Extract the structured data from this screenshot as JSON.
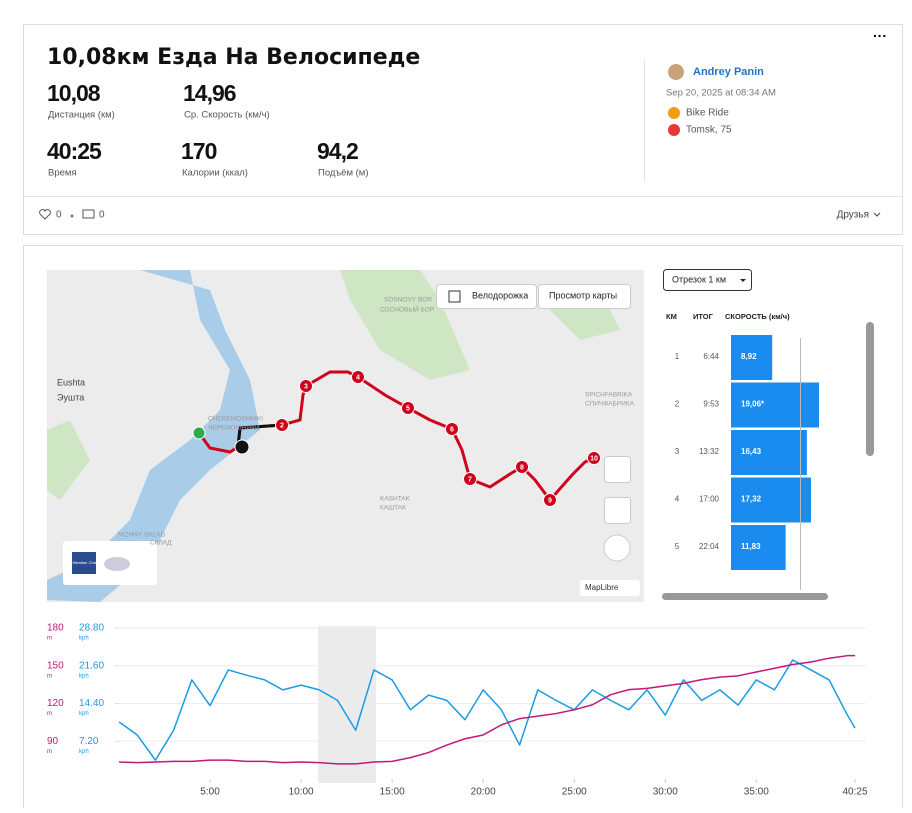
{
  "header": {
    "title": "10,08км Езда На Велосипеде",
    "menu": "···",
    "stats": [
      {
        "value": "10,08",
        "label": "Дистанция (км)"
      },
      {
        "value": "14,96",
        "label": "Ср. Скорость (км/ч)"
      },
      {
        "value": "40:25",
        "label": "Время"
      },
      {
        "value": "170",
        "label": "Калории (ккал)"
      },
      {
        "value": "94,2",
        "label": "Подъём (м)"
      }
    ]
  },
  "athlete": {
    "name": "Andrey Panin",
    "date": "Sep 20, 2025 at 08:34 AM",
    "activity": "Bike Ride",
    "location": "Tomsk, 75"
  },
  "social": {
    "likes": "0",
    "comments": "0",
    "visibility": "Друзья"
  },
  "map": {
    "toggle": "Велодорожка",
    "view": "Просмотр карты",
    "attribution": "MapLibre",
    "weather": "The Weather Channel",
    "places": [
      "Eushta",
      "Эушта",
      "SOSNOVY BOR",
      "СОСНОВЫЙ БОР",
      "CHEREMOSHNIKI",
      "ЧЕРЕМОШНИКИ",
      "KASHTAK",
      "КАШТАК",
      "SPICHFABRIKA",
      "СПИЧФАБРИКА",
      "NIZHNY SKLAD",
      "СКЛАД"
    ],
    "markers": [
      "2",
      "3",
      "4",
      "5",
      "6",
      "7",
      "8",
      "9",
      "10"
    ]
  },
  "splits": {
    "selector": "Отрезок 1 км",
    "headers": [
      "КМ",
      "ИТОГ",
      "СКОРОСТЬ (км/ч)"
    ],
    "rows": [
      {
        "km": "1",
        "total": "6:44",
        "speed": 8.92,
        "speed_label": "8,92"
      },
      {
        "km": "2",
        "total": "9:53",
        "speed": 19.06,
        "speed_label": "19,06*"
      },
      {
        "km": "3",
        "total": "13:32",
        "speed": 16.43,
        "speed_label": "16,43"
      },
      {
        "km": "4",
        "total": "17:00",
        "speed": 17.32,
        "speed_label": "17,32"
      },
      {
        "km": "5",
        "total": "22:04",
        "speed": 11.83,
        "speed_label": "11,83"
      }
    ]
  },
  "chart_data": {
    "type": "line",
    "y_unit": "m",
    "y2_unit": "kph",
    "x": [
      0,
      1,
      2,
      3,
      4,
      5,
      6,
      7,
      8,
      9,
      10,
      11,
      12,
      13,
      14,
      15,
      16,
      17,
      18,
      19,
      20,
      21,
      22,
      23,
      24,
      25,
      26,
      27,
      28,
      29,
      30,
      31,
      32,
      33,
      34,
      35,
      36,
      37,
      38,
      39,
      40,
      40.42
    ],
    "xlim": [
      0,
      40.42
    ],
    "xticks": [
      {
        "value": 5,
        "label": "5:00"
      },
      {
        "value": 10,
        "label": "10:00"
      },
      {
        "value": 15,
        "label": "15:00"
      },
      {
        "value": 20,
        "label": "20:00"
      },
      {
        "value": 25,
        "label": "25:00"
      },
      {
        "value": 30,
        "label": "30:00"
      },
      {
        "value": 35,
        "label": "35:00"
      },
      {
        "value": 40.42,
        "label": "40:25"
      }
    ],
    "ylim": [
      60,
      180
    ],
    "yticks": [
      90,
      120,
      150,
      180
    ],
    "y2lim": [
      0,
      28.8
    ],
    "y2ticks": [
      {
        "value": 7.2,
        "label": "7.20"
      },
      {
        "value": 14.4,
        "label": "14.40"
      },
      {
        "value": 21.6,
        "label": "21.60"
      },
      {
        "value": 28.8,
        "label": "28.80"
      }
    ],
    "series": [
      {
        "color": "#1a9be6",
        "axis": "y2",
        "values": [
          10.9,
          8.4,
          3.6,
          9.3,
          18.9,
          14,
          20.8,
          19.8,
          18.9,
          17,
          17.9,
          17,
          15,
          9.3,
          20.8,
          18.9,
          13.2,
          16,
          15,
          11.3,
          17,
          13.2,
          6.5,
          17,
          15,
          13.2,
          17,
          15,
          13.2,
          17,
          12.2,
          18.9,
          15,
          17,
          14.1,
          18.9,
          17,
          22.7,
          20.8,
          18.9,
          12.2,
          9.7
        ]
      },
      {
        "color": "#c2187a",
        "axis": "y",
        "values": [
          73.5,
          73,
          73.5,
          74,
          74,
          75,
          75,
          74,
          74,
          73,
          73.5,
          73,
          72,
          72,
          73.5,
          74,
          77,
          81,
          87,
          92,
          95,
          103,
          108,
          110,
          112,
          115,
          119,
          127,
          131,
          132,
          134,
          136,
          139,
          141,
          142,
          145,
          148,
          151,
          153,
          156,
          158,
          158
        ]
      }
    ]
  }
}
